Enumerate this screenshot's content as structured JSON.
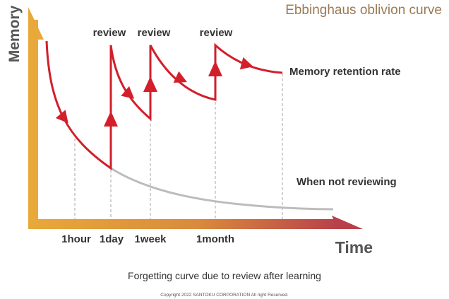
{
  "title": "Ebbinghaus oblivion curve",
  "axes": {
    "y_label": "Memory",
    "x_label": "Time"
  },
  "review_labels": [
    "review",
    "review",
    "review"
  ],
  "time_ticks": [
    "1hour",
    "1day",
    "1week",
    "1month"
  ],
  "series": {
    "with_review": "Memory retention rate",
    "without_review": "When not reviewing"
  },
  "caption": "Forgetting curve due to review after learning",
  "copyright": "Copyright 2022 SANTOKU CORPORATION All right Reserved.",
  "colors": {
    "title": "#9b7a53",
    "axis_start": "#e8a93a",
    "axis_end": "#b8404b",
    "retention_curve": "#d21f2b",
    "no_review_curve": "#bcbcbc",
    "guide_lines": "#a6a6a6",
    "label_text": "#333333"
  }
}
